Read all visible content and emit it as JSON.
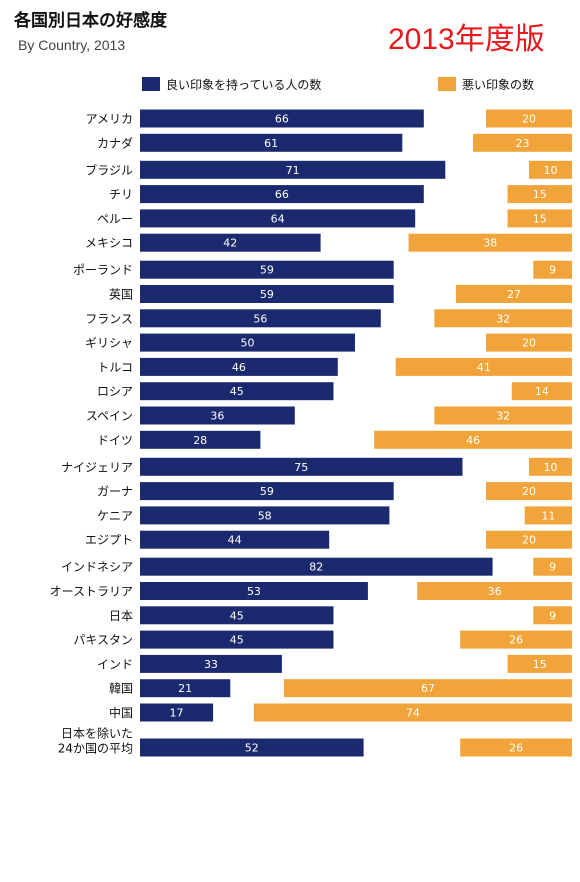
{
  "header": {
    "title": "各国別日本の好感度",
    "subtitle": "By Country, 2013",
    "edition": "2013年度版"
  },
  "colors": {
    "favorable": "#1b2a6e",
    "unfavorable": "#f0a43a"
  },
  "chart_data": {
    "type": "bar",
    "legend": {
      "placement": "top",
      "entries": [
        "良い印象を持っている人の数",
        "悪い印象の数"
      ]
    },
    "series": [
      {
        "name": "良い印象を持っている人の数",
        "key": "favorable"
      },
      {
        "name": "悪い印象の数",
        "key": "unfavorable"
      }
    ],
    "groups": [
      {
        "rows": [
          {
            "label": "アメリカ",
            "favorable": 66,
            "unfavorable": 20
          },
          {
            "label": "カナダ",
            "favorable": 61,
            "unfavorable": 23
          }
        ]
      },
      {
        "rows": [
          {
            "label": "ブラジル",
            "favorable": 71,
            "unfavorable": 10
          },
          {
            "label": "チリ",
            "favorable": 66,
            "unfavorable": 15
          },
          {
            "label": "ペルー",
            "favorable": 64,
            "unfavorable": 15
          },
          {
            "label": "メキシコ",
            "favorable": 42,
            "unfavorable": 38
          }
        ]
      },
      {
        "rows": [
          {
            "label": "ポーランド",
            "favorable": 59,
            "unfavorable": 9
          },
          {
            "label": "英国",
            "favorable": 59,
            "unfavorable": 27
          },
          {
            "label": "フランス",
            "favorable": 56,
            "unfavorable": 32
          },
          {
            "label": "ギリシャ",
            "favorable": 50,
            "unfavorable": 20
          },
          {
            "label": "トルコ",
            "favorable": 46,
            "unfavorable": 41
          },
          {
            "label": "ロシア",
            "favorable": 45,
            "unfavorable": 14
          },
          {
            "label": "スペイン",
            "favorable": 36,
            "unfavorable": 32
          },
          {
            "label": "ドイツ",
            "favorable": 28,
            "unfavorable": 46
          }
        ]
      },
      {
        "rows": [
          {
            "label": "ナイジェリア",
            "favorable": 75,
            "unfavorable": 10
          },
          {
            "label": "ガーナ",
            "favorable": 59,
            "unfavorable": 20
          },
          {
            "label": "ケニア",
            "favorable": 58,
            "unfavorable": 11
          },
          {
            "label": "エジプト",
            "favorable": 44,
            "unfavorable": 20
          }
        ]
      },
      {
        "rows": [
          {
            "label": "インドネシア",
            "favorable": 82,
            "unfavorable": 9
          },
          {
            "label": "オーストラリア",
            "favorable": 53,
            "unfavorable": 36
          },
          {
            "label": "日本",
            "favorable": 45,
            "unfavorable": 9
          },
          {
            "label": "パキスタン",
            "favorable": 45,
            "unfavorable": 26
          },
          {
            "label": "インド",
            "favorable": 33,
            "unfavorable": 15
          },
          {
            "label": "韓国",
            "favorable": 21,
            "unfavorable": 67
          },
          {
            "label": "中国",
            "favorable": 17,
            "unfavorable": 74
          }
        ]
      },
      {
        "rows": [
          {
            "label": [
              "日本を除いた",
              "24か国の平均"
            ],
            "favorable": 52,
            "unfavorable": 26
          }
        ]
      }
    ]
  }
}
